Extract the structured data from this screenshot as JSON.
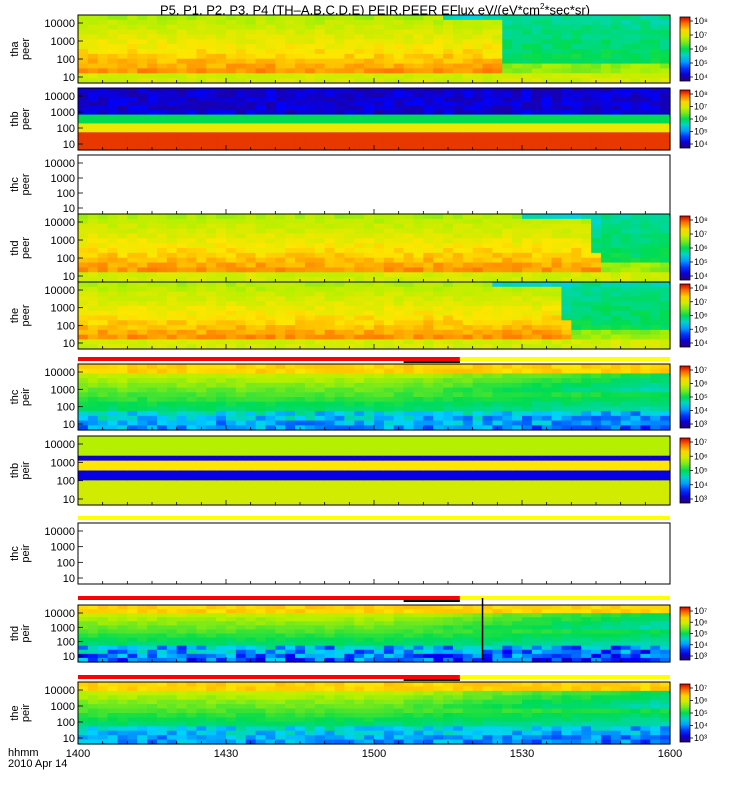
{
  "title": {
    "text_before_sup": "P5, P1, P2, P3, P4 (TH–A,B,C,D,E) PEIR,PEER EFlux eV/(eV*cm",
    "sup": "2",
    "text_after_sup": "*sec*sr)"
  },
  "time_axis": {
    "label_line1": "hhmm",
    "label_line2": "2010 Apr 14",
    "tick_labels": [
      "1400",
      "1430",
      "1500",
      "1530",
      "1600"
    ],
    "tick_minutes": [
      0,
      30,
      60,
      90,
      120
    ]
  },
  "colors": {
    "red_bar": "#ff0000",
    "yellow_bar": "#ffff00",
    "black_bar": "#000000"
  },
  "chart_data": [
    {
      "type": "heatmap",
      "name": "tha-peer",
      "ylabel": [
        "tha",
        "peer"
      ],
      "yticks": [
        "10000",
        "1000",
        "100",
        "10"
      ],
      "colorbar_ticks": [
        "10⁸",
        "10⁷",
        "10⁶",
        "10⁵",
        "10⁴"
      ],
      "pattern": "falloff",
      "falloff_minutes": 85
    },
    {
      "type": "heatmap",
      "name": "thb-peer",
      "ylabel": [
        "thb",
        "peer"
      ],
      "yticks": [
        "10000",
        "1000",
        "100",
        "10"
      ],
      "colorbar_ticks": [
        "10⁸",
        "10⁷",
        "10⁶",
        "10⁵",
        "10⁴"
      ],
      "pattern": "bands-electron"
    },
    {
      "type": "heatmap",
      "name": "thc-peer",
      "ylabel": [
        "thc",
        "peer"
      ],
      "yticks": [
        "10000",
        "1000",
        "100",
        "10"
      ],
      "colorbar_ticks": [],
      "pattern": "empty"
    },
    {
      "type": "heatmap",
      "name": "thd-peer",
      "ylabel": [
        "thd",
        "peer"
      ],
      "yticks": [
        "10000",
        "1000",
        "100",
        "10"
      ],
      "colorbar_ticks": [
        "10⁸",
        "10⁷",
        "10⁶",
        "10⁵",
        "10⁴"
      ],
      "pattern": "falloff",
      "falloff_minutes": 104
    },
    {
      "type": "heatmap",
      "name": "the-peer",
      "ylabel": [
        "the",
        "peer"
      ],
      "yticks": [
        "10000",
        "1000",
        "100",
        "10"
      ],
      "colorbar_ticks": [
        "10⁸",
        "10⁷",
        "10⁶",
        "10⁵",
        "10⁴"
      ],
      "pattern": "falloff",
      "falloff_minutes": 98
    },
    {
      "type": "heatmap",
      "name": "thb-peir-like-thc",
      "ylabel": [
        "thc",
        "peir"
      ],
      "yticks": [
        "10000",
        "1000",
        "100",
        "10"
      ],
      "colorbar_ticks": [
        "10⁷",
        "10⁶",
        "10⁵",
        "10⁴",
        "10³"
      ],
      "pattern": "ion"
    },
    {
      "type": "heatmap",
      "name": "thb-peir",
      "ylabel": [
        "thb",
        "peir"
      ],
      "yticks": [
        "10000",
        "1000",
        "100",
        "10"
      ],
      "colorbar_ticks": [
        "10⁷",
        "10⁶",
        "10⁵",
        "10⁴",
        "10³"
      ],
      "pattern": "bands-ion"
    },
    {
      "type": "heatmap",
      "name": "thc-peir",
      "ylabel": [
        "thc",
        "peir"
      ],
      "yticks": [
        "10000",
        "1000",
        "100",
        "10"
      ],
      "colorbar_ticks": [],
      "pattern": "empty"
    },
    {
      "type": "heatmap",
      "name": "thd-peir",
      "ylabel": [
        "thd",
        "peir"
      ],
      "yticks": [
        "10000",
        "1000",
        "100",
        "10"
      ],
      "colorbar_ticks": [
        "10⁷",
        "10⁶",
        "10⁵",
        "10⁴",
        "10³"
      ],
      "pattern": "ion-noisy"
    },
    {
      "type": "heatmap",
      "name": "the-peir",
      "ylabel": [
        "the",
        "peir"
      ],
      "yticks": [
        "10000",
        "1000",
        "100",
        "10"
      ],
      "colorbar_ticks": [
        "10⁷",
        "10⁶",
        "10⁵",
        "10⁴",
        "10³"
      ],
      "pattern": "ion"
    }
  ]
}
